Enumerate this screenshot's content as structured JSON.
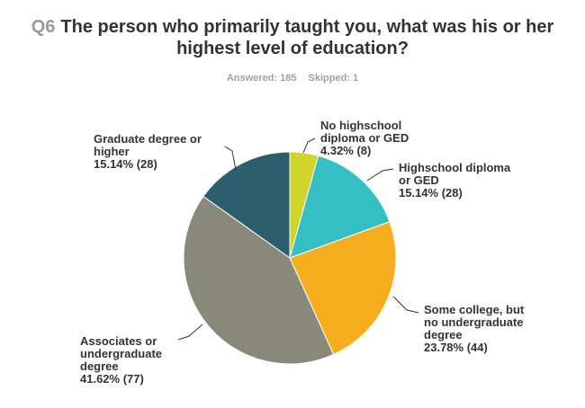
{
  "question": {
    "number": "Q6",
    "text_line1": "The person who primarily taught you, what was his or her",
    "text_line2": "highest level of education?"
  },
  "stats": {
    "answered": "Answered: 185",
    "skipped": "Skipped: 1"
  },
  "chart_data": {
    "type": "pie",
    "categories": [
      "No highschool diploma or GED",
      "Highschool diploma or GED",
      "Some college, but no undergraduate degree",
      "Associates or undergraduate degree",
      "Graduate degree or higher"
    ],
    "values": [
      4.32,
      15.14,
      23.78,
      41.62,
      15.14
    ],
    "counts": [
      8,
      28,
      44,
      77,
      28
    ],
    "colors": [
      "#cfd52a",
      "#35bfc3",
      "#f6ae1f",
      "#898979",
      "#2d5e6e"
    ],
    "labels": [
      [
        "No highschool",
        "diploma or GED",
        "4.32% (8)"
      ],
      [
        "Highschool diploma",
        "or GED",
        "15.14% (28)"
      ],
      [
        "Some college, but",
        "no undergraduate",
        "degree",
        "23.78% (44)"
      ],
      [
        "Associates or",
        "undergraduate",
        "degree",
        "41.62% (77)"
      ],
      [
        "Graduate degree or",
        "higher",
        "15.14% (28)"
      ]
    ]
  }
}
